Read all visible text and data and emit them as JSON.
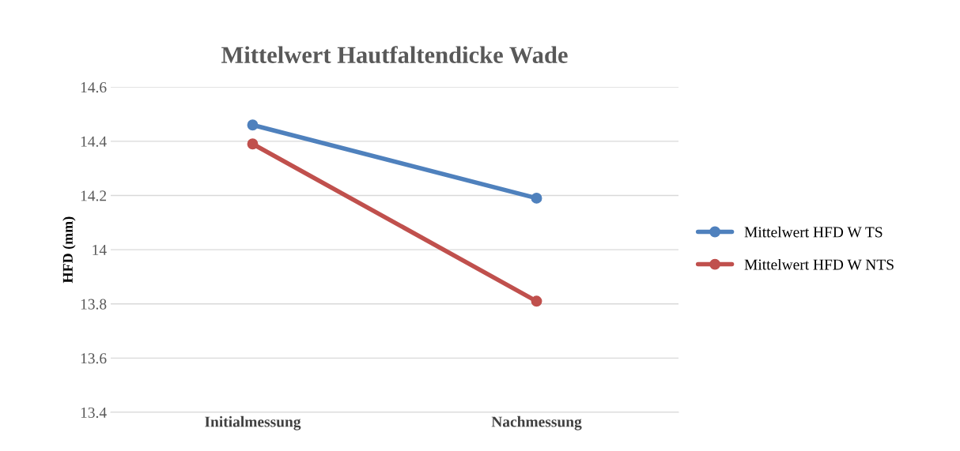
{
  "chart_data": {
    "type": "line",
    "title": "Mittelwert Hautfaltendicke Wade",
    "ylabel": "HFD (mm)",
    "categories": [
      "Initialmessung",
      "Nachmessung"
    ],
    "series": [
      {
        "name": "Mittelwert HFD W TS",
        "color": "#4f81bd",
        "values": [
          14.46,
          14.19
        ]
      },
      {
        "name": "Mittelwert HFD W NTS",
        "color": "#c0504d",
        "values": [
          14.39,
          13.81
        ]
      }
    ],
    "ylim": [
      13.4,
      14.6
    ],
    "yticks": [
      13.4,
      13.6,
      13.8,
      14,
      14.2,
      14.4,
      14.6
    ],
    "grid": "y",
    "legend": "right",
    "marker": "circle",
    "line_style": "solid"
  }
}
